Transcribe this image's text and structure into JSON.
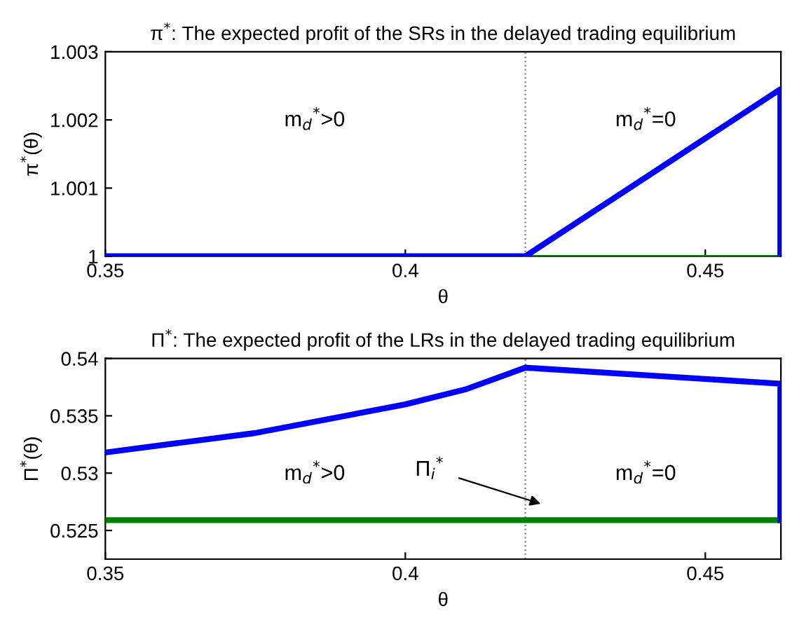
{
  "chart_data": [
    {
      "type": "line",
      "title": "π$^{*}$: The expected profit of the SRs in the delayed trading equilibrium",
      "xlabel": "θ",
      "ylabel": "π$^{*}$(θ)",
      "xlim": [
        0.35,
        0.4626
      ],
      "xticks": [
        0.35,
        0.4,
        0.45
      ],
      "ylim": [
        1,
        1.003
      ],
      "yticks": [
        1,
        1.001,
        1.002,
        1.003
      ],
      "grid": false,
      "legend": false,
      "line_style": "solid",
      "series": [
        {
          "color": "#008000",
          "x": [
            0.42,
            0.4625
          ],
          "values": [
            1,
            1
          ]
        },
        {
          "color": "#0000ff",
          "x": [
            0.35,
            0.42,
            0.4625,
            0.4625
          ],
          "values": [
            1,
            1,
            1.00245,
            1
          ]
        }
      ],
      "ref_lines": [
        {
          "axis": "x",
          "value": 0.42,
          "label": null,
          "color": "#808080",
          "line_style": "dotted"
        }
      ],
      "annotations": [
        "m$_{d}$$^{*}$>0",
        "m$_{d}$$^{*}$=0"
      ]
    },
    {
      "type": "line",
      "title": "Π$^{*}$: The expected profit of the LRs in the delayed trading equilibrium",
      "xlabel": "θ",
      "ylabel": "Π$^{*}$(θ)",
      "xlim": [
        0.35,
        0.4626
      ],
      "xticks": [
        0.35,
        0.4,
        0.45
      ],
      "ylim": [
        0.5225,
        0.54
      ],
      "yticks": [
        0.525,
        0.53,
        0.535,
        0.54
      ],
      "grid": false,
      "legend": false,
      "line_style": "solid",
      "series": [
        {
          "color": "#008000",
          "x": [
            0.35,
            0.4625
          ],
          "values": [
            0.5259,
            0.5259
          ]
        },
        {
          "color": "#0000ff",
          "x": [
            0.35,
            0.375,
            0.4,
            0.41,
            0.42,
            0.4625,
            0.4625
          ],
          "values": [
            0.5318,
            0.5335,
            0.536,
            0.5373,
            0.5392,
            0.5378,
            0.5259
          ]
        }
      ],
      "ref_lines": [
        {
          "axis": "x",
          "value": 0.42,
          "label": null,
          "color": "#808080",
          "line_style": "dotted"
        }
      ],
      "annotations": [
        "m$_{d}$$^{*}$>0",
        "Π$_{i}$$^{*}$",
        "m$_{d}$$^{*}$=0"
      ]
    }
  ]
}
